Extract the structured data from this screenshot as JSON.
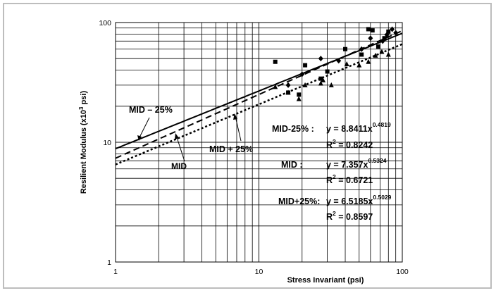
{
  "chart_data": {
    "type": "scatter",
    "xlabel": "Stress Invariant (psi)",
    "ylabel_main": "Resilient Modulus (x10",
    "ylabel_sup": "3",
    "ylabel_tail": " psi)",
    "x_scale": "log",
    "y_scale": "log",
    "xlim": [
      1,
      100
    ],
    "ylim": [
      1,
      100
    ],
    "x_ticks": [
      "1",
      "10",
      "100"
    ],
    "y_ticks": [
      "1",
      "10",
      "100"
    ],
    "grid": true,
    "series": [
      {
        "name": "MID - 25%",
        "marker": "diamond",
        "line_style": "solid",
        "fit": {
          "a": 8.8411,
          "b": 0.4819
        },
        "points": [
          {
            "x": 16,
            "y": 30
          },
          {
            "x": 20,
            "y": 37
          },
          {
            "x": 27,
            "y": 50
          },
          {
            "x": 36,
            "y": 48
          },
          {
            "x": 52,
            "y": 60
          },
          {
            "x": 60,
            "y": 74
          },
          {
            "x": 73,
            "y": 70
          },
          {
            "x": 78,
            "y": 79
          },
          {
            "x": 85,
            "y": 88
          },
          {
            "x": 90,
            "y": 82
          }
        ]
      },
      {
        "name": "MID",
        "marker": "square",
        "line_style": "dashed",
        "fit": {
          "a": 7.357,
          "b": 0.5324
        },
        "points": [
          {
            "x": 13,
            "y": 47
          },
          {
            "x": 16,
            "y": 26
          },
          {
            "x": 19,
            "y": 25
          },
          {
            "x": 21,
            "y": 44
          },
          {
            "x": 27,
            "y": 34
          },
          {
            "x": 30,
            "y": 39
          },
          {
            "x": 40,
            "y": 60
          },
          {
            "x": 52,
            "y": 54
          },
          {
            "x": 58,
            "y": 88
          },
          {
            "x": 62,
            "y": 86
          },
          {
            "x": 68,
            "y": 63
          },
          {
            "x": 75,
            "y": 74
          },
          {
            "x": 80,
            "y": 84
          }
        ]
      },
      {
        "name": "MID + 25%",
        "marker": "triangle",
        "line_style": "dotted",
        "fit": {
          "a": 6.5185,
          "b": 0.5029
        },
        "points": [
          {
            "x": 13,
            "y": 29
          },
          {
            "x": 16,
            "y": 26
          },
          {
            "x": 19,
            "y": 23
          },
          {
            "x": 21,
            "y": 30
          },
          {
            "x": 27,
            "y": 31
          },
          {
            "x": 28,
            "y": 33
          },
          {
            "x": 32,
            "y": 30
          },
          {
            "x": 41,
            "y": 45
          },
          {
            "x": 50,
            "y": 44
          },
          {
            "x": 58,
            "y": 47
          },
          {
            "x": 65,
            "y": 53
          },
          {
            "x": 72,
            "y": 57
          },
          {
            "x": 80,
            "y": 54
          }
        ]
      }
    ],
    "line_labels": [
      "MID – 25%",
      "MID",
      "MID + 25%"
    ],
    "equations": [
      {
        "label": "MID-25% :",
        "eq": "y = 8.8411x",
        "exp": "0.4819",
        "r2_prefix": "R",
        "r2_sup": "2",
        "r2_value": " = 0.8242"
      },
      {
        "label": "MID :",
        "eq": "y = 7.357x",
        "exp": "0.5324",
        "r2_prefix": "R",
        "r2_sup": "2",
        "r2_value": " = 0.6721"
      },
      {
        "label": "MID+25%:",
        "eq": "y = 6.5185x",
        "exp": "0.5029",
        "r2_prefix": "R",
        "r2_sup": "2",
        "r2_value": " = 0.8597"
      }
    ]
  }
}
